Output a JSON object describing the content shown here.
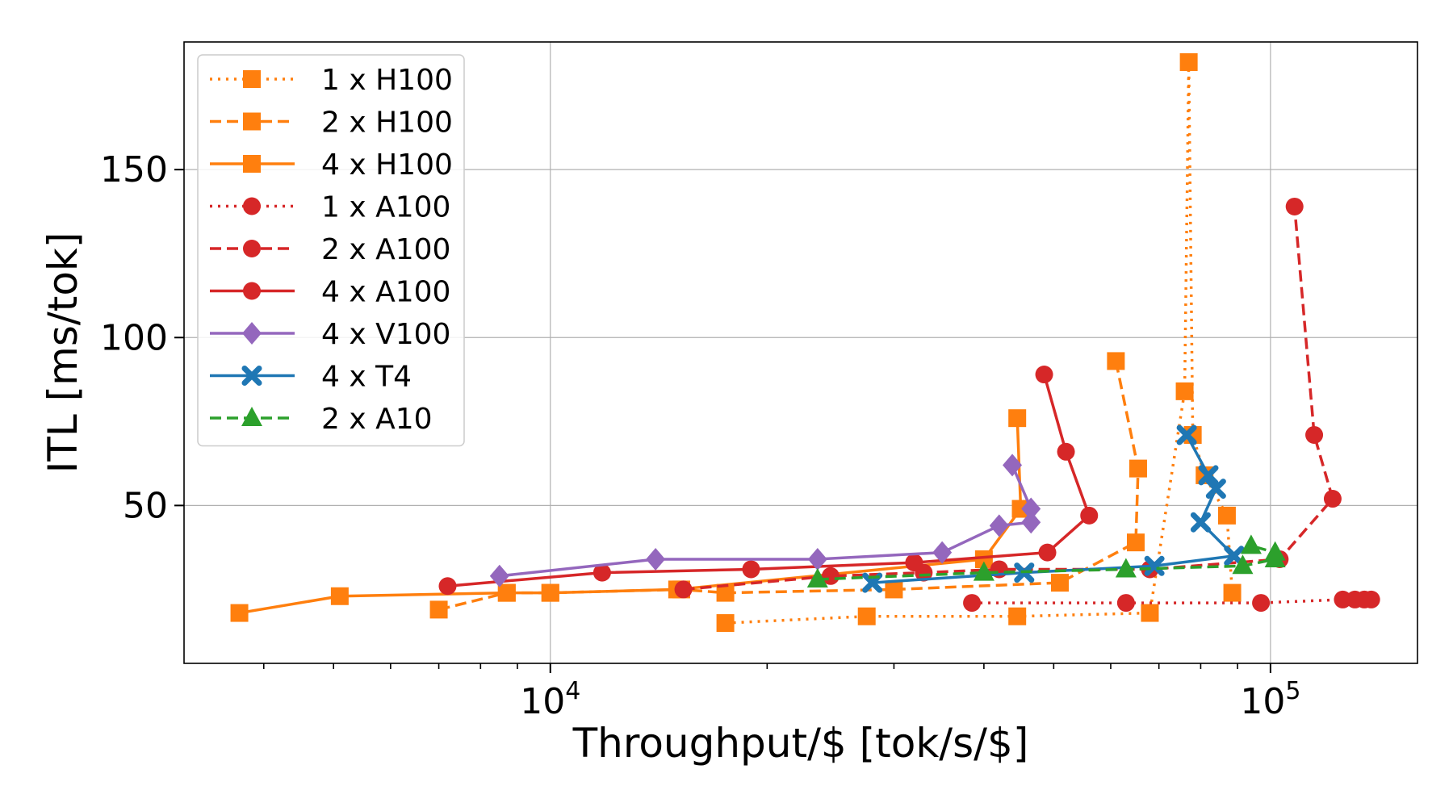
{
  "chart_data": {
    "type": "line",
    "title": "",
    "xlabel": "Throughput/$ [tok/s/$]",
    "ylabel": "ITL [ms/tok]",
    "x_scale": "log",
    "xlim": [
      3100,
      160000
    ],
    "ylim": [
      3,
      188
    ],
    "grid": true,
    "legend_position": "top-left",
    "x_major_ticks": [
      {
        "value": 10000,
        "base": "10",
        "exp": "4"
      },
      {
        "value": 100000,
        "base": "10",
        "exp": "5"
      }
    ],
    "x_minor_ticks": [
      4000,
      5000,
      6000,
      7000,
      8000,
      9000,
      20000,
      30000,
      40000,
      50000,
      60000,
      70000,
      80000,
      90000
    ],
    "y_ticks": [
      {
        "value": 50,
        "label": "50"
      },
      {
        "value": 100,
        "label": "100"
      },
      {
        "value": 150,
        "label": "150"
      }
    ],
    "series": [
      {
        "name": "1 x H100",
        "color": "#ff7f0e",
        "linestyle": "dotted",
        "marker": "square",
        "points": [
          [
            17500,
            15
          ],
          [
            27500,
            17
          ],
          [
            44500,
            17
          ],
          [
            68000,
            18
          ],
          [
            76000,
            84
          ],
          [
            77000,
            182
          ],
          [
            78000,
            71
          ],
          [
            81000,
            59
          ],
          [
            87000,
            47
          ],
          [
            88500,
            24
          ]
        ]
      },
      {
        "name": "2 x H100",
        "color": "#ff7f0e",
        "linestyle": "dashed",
        "marker": "square",
        "points": [
          [
            7000,
            19
          ],
          [
            8700,
            24
          ],
          [
            10000,
            24
          ],
          [
            15200,
            25
          ],
          [
            17500,
            24
          ],
          [
            30000,
            25
          ],
          [
            51000,
            27
          ],
          [
            65000,
            39
          ],
          [
            65500,
            61
          ],
          [
            61000,
            93
          ]
        ]
      },
      {
        "name": "4 x H100",
        "color": "#ff7f0e",
        "linestyle": "solid",
        "marker": "square",
        "points": [
          [
            3700,
            18
          ],
          [
            5100,
            23
          ],
          [
            8700,
            24
          ],
          [
            10000,
            24
          ],
          [
            15000,
            25
          ],
          [
            40000,
            34
          ],
          [
            45000,
            49
          ],
          [
            44500,
            76
          ]
        ]
      },
      {
        "name": "1 x A100",
        "color": "#d62728",
        "linestyle": "dotted",
        "marker": "circle",
        "points": [
          [
            38500,
            21
          ],
          [
            63000,
            21
          ],
          [
            97000,
            21
          ],
          [
            126000,
            22
          ],
          [
            131000,
            22
          ],
          [
            135000,
            22
          ],
          [
            138000,
            22
          ]
        ]
      },
      {
        "name": "2 x A100",
        "color": "#d62728",
        "linestyle": "dashed",
        "marker": "circle",
        "points": [
          [
            15300,
            25
          ],
          [
            24500,
            29
          ],
          [
            33000,
            30
          ],
          [
            42000,
            31
          ],
          [
            68000,
            31
          ],
          [
            103000,
            34
          ],
          [
            122000,
            52
          ],
          [
            115000,
            71
          ],
          [
            108000,
            139
          ]
        ]
      },
      {
        "name": "4 x A100",
        "color": "#d62728",
        "linestyle": "solid",
        "marker": "circle",
        "points": [
          [
            7200,
            26
          ],
          [
            11800,
            30
          ],
          [
            19000,
            31
          ],
          [
            32000,
            33
          ],
          [
            49000,
            36
          ],
          [
            56000,
            47
          ],
          [
            52000,
            66
          ],
          [
            48500,
            89
          ]
        ]
      },
      {
        "name": "4 x V100",
        "color": "#9467bd",
        "linestyle": "solid",
        "marker": "diamond",
        "points": [
          [
            8500,
            29
          ],
          [
            14000,
            34
          ],
          [
            23500,
            34
          ],
          [
            35000,
            36
          ],
          [
            42000,
            44
          ],
          [
            46500,
            45
          ],
          [
            46500,
            49
          ],
          [
            43800,
            62
          ]
        ]
      },
      {
        "name": "4 x T4",
        "color": "#1f77b4",
        "linestyle": "solid",
        "marker": "x",
        "points": [
          [
            28000,
            27
          ],
          [
            45500,
            30
          ],
          [
            69000,
            32
          ],
          [
            89000,
            35
          ],
          [
            80000,
            45
          ],
          [
            84000,
            55
          ],
          [
            82000,
            59
          ],
          [
            76500,
            71
          ]
        ]
      },
      {
        "name": "2 x A10",
        "color": "#2ca02c",
        "linestyle": "dashed",
        "marker": "triangle",
        "points": [
          [
            23500,
            28
          ],
          [
            40000,
            30
          ],
          [
            63000,
            31
          ],
          [
            91500,
            32
          ],
          [
            101500,
            34
          ],
          [
            101500,
            36
          ],
          [
            94000,
            38
          ]
        ]
      }
    ]
  }
}
